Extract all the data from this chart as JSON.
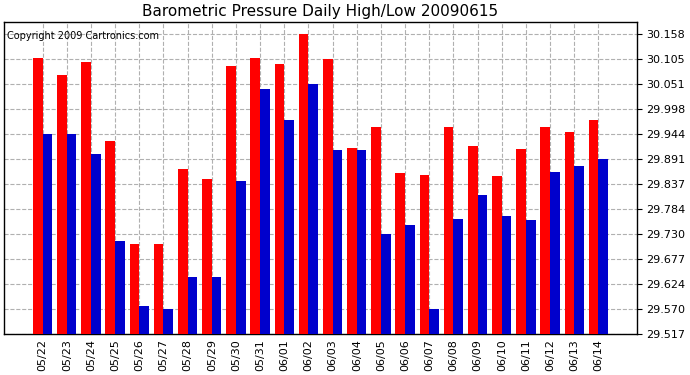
{
  "title": "Barometric Pressure Daily High/Low 20090615",
  "copyright": "Copyright 2009 Cartronics.com",
  "dates": [
    "05/22",
    "05/23",
    "05/24",
    "05/25",
    "05/26",
    "05/27",
    "05/28",
    "05/29",
    "05/30",
    "05/31",
    "06/01",
    "06/02",
    "06/03",
    "06/04",
    "06/05",
    "06/06",
    "06/07",
    "06/08",
    "06/09",
    "06/10",
    "06/11",
    "06/12",
    "06/13",
    "06/14"
  ],
  "highs": [
    30.108,
    30.072,
    30.098,
    29.93,
    29.71,
    29.71,
    29.87,
    29.848,
    30.09,
    30.108,
    30.095,
    30.158,
    30.105,
    29.915,
    29.96,
    29.862,
    29.858,
    29.96,
    29.92,
    29.855,
    29.912,
    29.96,
    29.95,
    29.975
  ],
  "lows": [
    29.944,
    29.944,
    29.902,
    29.716,
    29.576,
    29.57,
    29.638,
    29.638,
    29.844,
    30.041,
    29.975,
    30.051,
    29.91,
    29.91,
    29.73,
    29.75,
    29.57,
    29.762,
    29.814,
    29.77,
    29.76,
    29.864,
    29.876,
    29.892
  ],
  "high_color": "#ff0000",
  "low_color": "#0000cc",
  "bg_color": "#ffffff",
  "plot_bg_color": "#ffffff",
  "grid_color": "#b0b0b0",
  "title_fontsize": 11,
  "copyright_fontsize": 7,
  "tick_fontsize": 8,
  "ylim_min": 29.517,
  "ylim_max": 30.185,
  "yticks": [
    29.517,
    29.57,
    29.624,
    29.677,
    29.73,
    29.784,
    29.837,
    29.891,
    29.944,
    29.998,
    30.051,
    30.105,
    30.158
  ]
}
